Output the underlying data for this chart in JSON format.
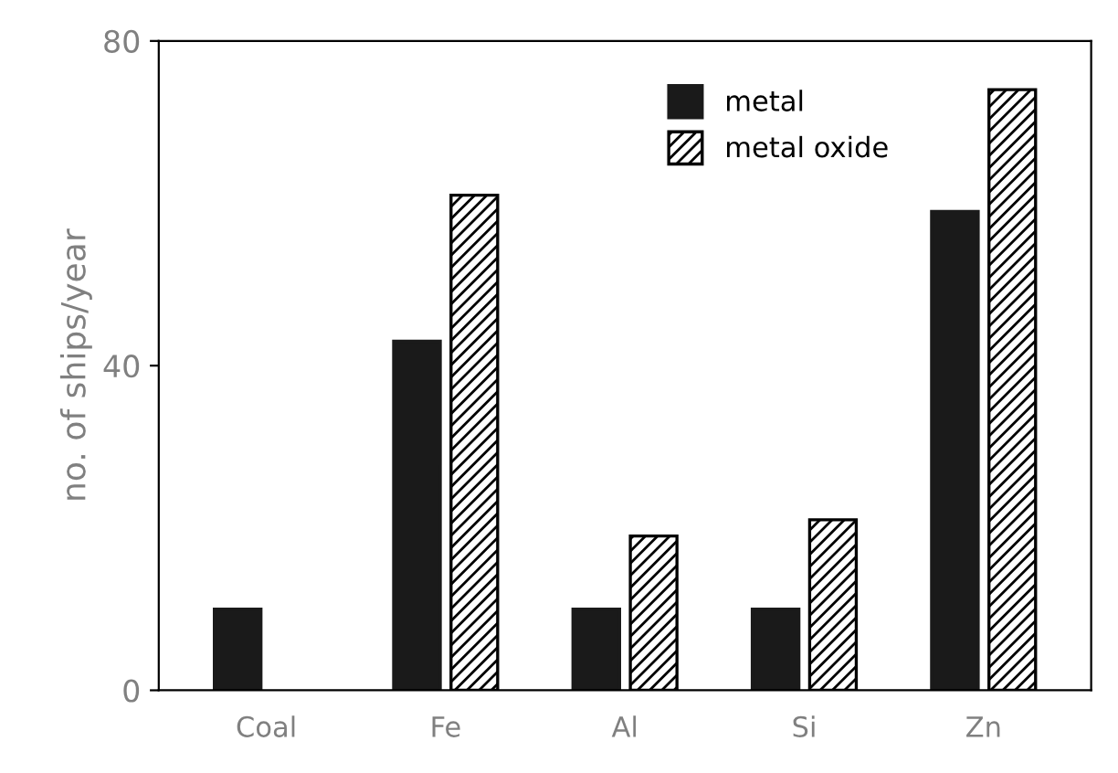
{
  "chart_data": {
    "type": "bar",
    "ylabel": "no. of ships/year",
    "categories": [
      "Coal",
      "Fe",
      "Al",
      "Si",
      "Zn"
    ],
    "series": [
      {
        "name": "metal",
        "color": "#1a1a1a",
        "values": [
          10,
          43,
          10,
          10,
          59
        ]
      },
      {
        "name": "metal oxide",
        "color": "#000000",
        "values": [
          null,
          61,
          19,
          21,
          74
        ]
      }
    ],
    "ylim": [
      0,
      80
    ],
    "yticks": [
      0,
      40,
      80
    ],
    "grid": false,
    "legend": "top"
  }
}
